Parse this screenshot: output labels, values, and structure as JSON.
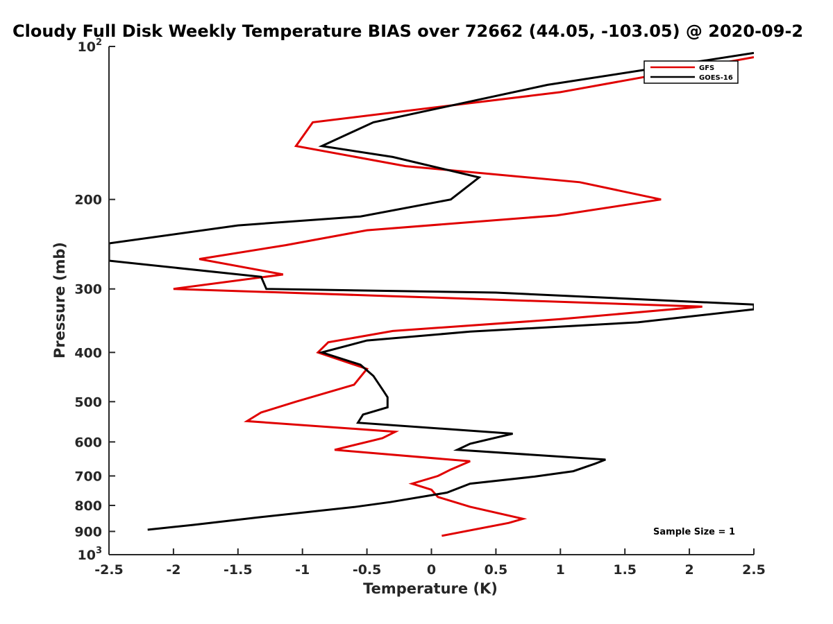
{
  "chart_data": {
    "type": "line",
    "title": "Cloudy Full Disk Weekly Temperature BIAS over 72662 (44.05, -103.05) @ 2020-09-2",
    "xlabel": "Temperature (K)",
    "ylabel": "Pressure (mb)",
    "xlim": [
      -2.5,
      2.5
    ],
    "ylim": [
      100,
      1000
    ],
    "y_scale": "log",
    "y_reversed": true,
    "x_ticks": [
      "-2.5",
      "-2",
      "-1.5",
      "-1",
      "-0.5",
      "0",
      "0.5",
      "1",
      "1.5",
      "2",
      "2.5"
    ],
    "y_ticks": [
      {
        "value": 100,
        "base": "10",
        "exp": "2"
      },
      {
        "value": 200,
        "label": "200"
      },
      {
        "value": 300,
        "label": "300"
      },
      {
        "value": 400,
        "label": "400"
      },
      {
        "value": 500,
        "label": "500"
      },
      {
        "value": 600,
        "label": "600"
      },
      {
        "value": 700,
        "label": "700"
      },
      {
        "value": 800,
        "label": "800"
      },
      {
        "value": 900,
        "label": "900"
      },
      {
        "value": 1000,
        "base": "10",
        "exp": "3"
      }
    ],
    "grid": false,
    "legend_position": "top-right",
    "annotation": "Sample Size = 1",
    "series": [
      {
        "name": "GFS",
        "color": "#e00000",
        "points": [
          {
            "x": 2.5,
            "p": 105
          },
          {
            "x": 1.0,
            "p": 123
          },
          {
            "x": -0.92,
            "p": 141
          },
          {
            "x": -1.05,
            "p": 157
          },
          {
            "x": -0.2,
            "p": 172
          },
          {
            "x": 1.15,
            "p": 185
          },
          {
            "x": 1.78,
            "p": 200
          },
          {
            "x": 0.97,
            "p": 215
          },
          {
            "x": -0.5,
            "p": 230
          },
          {
            "x": -1.13,
            "p": 246
          },
          {
            "x": -1.8,
            "p": 262
          },
          {
            "x": -1.15,
            "p": 281
          },
          {
            "x": -2.0,
            "p": 300
          },
          {
            "x": -0.3,
            "p": 310
          },
          {
            "x": 2.1,
            "p": 325
          },
          {
            "x": 1.0,
            "p": 344
          },
          {
            "x": -0.3,
            "p": 363
          },
          {
            "x": -0.8,
            "p": 382
          },
          {
            "x": -0.88,
            "p": 400
          },
          {
            "x": -0.5,
            "p": 431
          },
          {
            "x": -0.6,
            "p": 463
          },
          {
            "x": -1.05,
            "p": 500
          },
          {
            "x": -1.32,
            "p": 525
          },
          {
            "x": -1.43,
            "p": 546
          },
          {
            "x": -0.28,
            "p": 573
          },
          {
            "x": -0.38,
            "p": 590
          },
          {
            "x": -0.75,
            "p": 622
          },
          {
            "x": 0.3,
            "p": 655
          },
          {
            "x": 0.15,
            "p": 680
          },
          {
            "x": 0.05,
            "p": 700
          },
          {
            "x": -0.15,
            "p": 725
          },
          {
            "x": 0.0,
            "p": 745
          },
          {
            "x": 0.05,
            "p": 770
          },
          {
            "x": 0.3,
            "p": 805
          },
          {
            "x": 0.71,
            "p": 850
          },
          {
            "x": 0.6,
            "p": 866
          },
          {
            "x": 0.08,
            "p": 918
          }
        ]
      },
      {
        "name": "GOES-16",
        "color": "#000000",
        "points": [
          {
            "x": 2.5,
            "p": 103
          },
          {
            "x": 0.9,
            "p": 119
          },
          {
            "x": -0.45,
            "p": 141
          },
          {
            "x": -0.85,
            "p": 157
          },
          {
            "x": -0.3,
            "p": 165
          },
          {
            "x": 0.37,
            "p": 181
          },
          {
            "x": 0.15,
            "p": 200
          },
          {
            "x": -0.55,
            "p": 216
          },
          {
            "x": -1.5,
            "p": 225
          },
          {
            "x": -2.5,
            "p": 244
          },
          {
            "x": -2.5,
            "p": 264
          },
          {
            "x": -1.32,
            "p": 284
          },
          {
            "x": -1.28,
            "p": 300
          },
          {
            "x": 0.5,
            "p": 305
          },
          {
            "x": 2.5,
            "p": 322
          },
          {
            "x": 2.5,
            "p": 329
          },
          {
            "x": 1.6,
            "p": 349
          },
          {
            "x": 0.3,
            "p": 364
          },
          {
            "x": -0.5,
            "p": 379
          },
          {
            "x": -0.85,
            "p": 400
          },
          {
            "x": -0.55,
            "p": 423
          },
          {
            "x": -0.45,
            "p": 445
          },
          {
            "x": -0.37,
            "p": 477
          },
          {
            "x": -0.34,
            "p": 490
          },
          {
            "x": -0.34,
            "p": 513
          },
          {
            "x": -0.53,
            "p": 530
          },
          {
            "x": -0.57,
            "p": 550
          },
          {
            "x": 0.63,
            "p": 578
          },
          {
            "x": 0.3,
            "p": 605
          },
          {
            "x": 0.2,
            "p": 622
          },
          {
            "x": 1.35,
            "p": 650
          },
          {
            "x": 1.27,
            "p": 662
          },
          {
            "x": 1.1,
            "p": 685
          },
          {
            "x": 0.8,
            "p": 702
          },
          {
            "x": 0.3,
            "p": 725
          },
          {
            "x": 0.12,
            "p": 755
          },
          {
            "x": -0.32,
            "p": 788
          },
          {
            "x": -0.6,
            "p": 806
          },
          {
            "x": -1.35,
            "p": 845
          },
          {
            "x": -1.85,
            "p": 874
          },
          {
            "x": -2.2,
            "p": 893
          }
        ]
      }
    ]
  }
}
